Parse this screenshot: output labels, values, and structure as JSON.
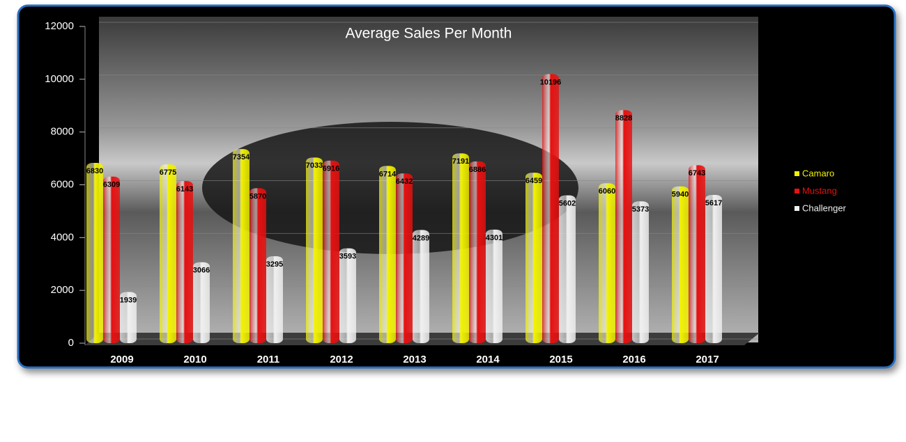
{
  "chart_data": {
    "type": "bar",
    "title": "Average Sales Per Month",
    "categories": [
      "2009",
      "2010",
      "2011",
      "2012",
      "2013",
      "2014",
      "2015",
      "2016",
      "2017"
    ],
    "series": [
      {
        "name": "Camaro",
        "color": "#f2f200",
        "values": [
          6830,
          6775,
          7354,
          7033,
          6714,
          7191,
          6459,
          6060,
          5940
        ]
      },
      {
        "name": "Mustang",
        "color": "#e81010",
        "values": [
          6309,
          6143,
          5870,
          6916,
          6432,
          6886,
          10196,
          8828,
          6743
        ]
      },
      {
        "name": "Challenger",
        "color": "#f0f0f0",
        "values": [
          1939,
          3066,
          3295,
          3593,
          4289,
          4301,
          5602,
          5373,
          5617
        ]
      }
    ],
    "ylim": [
      0,
      12000
    ],
    "yticks": [
      0,
      2000,
      4000,
      6000,
      8000,
      10000,
      12000
    ],
    "grid": true,
    "legend": "right"
  }
}
